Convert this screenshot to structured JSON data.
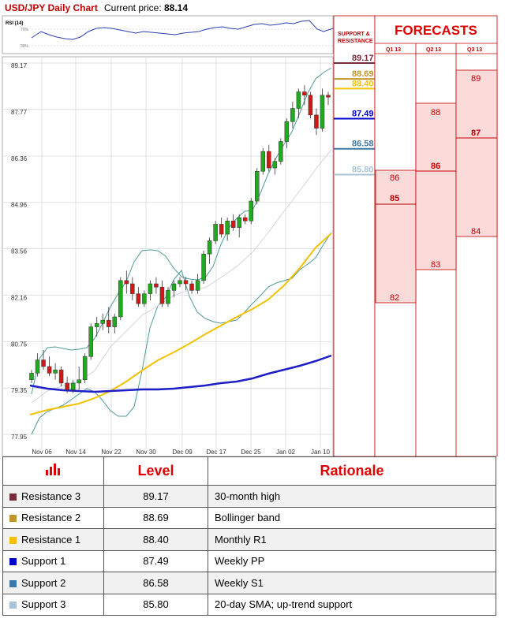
{
  "header": {
    "title": "USD/JPY Daily Chart",
    "price_label": "Current price:",
    "price_value": "88.14"
  },
  "rsi": {
    "label": "RSI (14)",
    "upper": "70%",
    "lower": "30%"
  },
  "forecasts": {
    "title": "FORECASTS",
    "sr_label_1": "SUPPORT &",
    "sr_label_2": "RESISTANCE",
    "columns": [
      {
        "label": "Q1 13",
        "low": "82",
        "mid": "85",
        "high": "86"
      },
      {
        "label": "Q2 13",
        "low": "83",
        "mid": "86",
        "high": "88"
      },
      {
        "label": "Q3 13",
        "low": "84",
        "mid": "87",
        "high": "89"
      }
    ]
  },
  "table": {
    "col_level": "Level",
    "col_rationale": "Rationale",
    "rows": [
      {
        "name": "Resistance 3",
        "level": "89.17",
        "rationale": "30-month high",
        "color": "#7b2c3a"
      },
      {
        "name": "Resistance 2",
        "level": "88.69",
        "rationale": "Bollinger band",
        "color": "#c4952c"
      },
      {
        "name": "Resistance 1",
        "level": "88.40",
        "rationale": "Monthly R1",
        "color": "#f2c200"
      },
      {
        "name": "Support 1",
        "level": "87.49",
        "rationale": "Weekly PP",
        "color": "#0000cc"
      },
      {
        "name": "Support 2",
        "level": "86.58",
        "rationale": "Weekly S1",
        "color": "#3f78a4"
      },
      {
        "name": "Support 3",
        "level": "85.80",
        "rationale": "20-day SMA; up-trend support",
        "color": "#a9c4da"
      }
    ]
  },
  "chart_data": {
    "type": "candlestick",
    "title": "USD/JPY Daily Chart",
    "y_ticks": [
      "89.17",
      "87.77",
      "86.36",
      "84.96",
      "83.56",
      "82.16",
      "80.75",
      "79.35",
      "77.95"
    ],
    "x_ticks": [
      "Nov 06",
      "Nov 14",
      "Nov 22",
      "Nov 30",
      "Dec 09",
      "Dec 17",
      "Dec 25",
      "Jan 02",
      "Jan 10"
    ],
    "ylim": [
      77.95,
      89.17
    ],
    "levels": [
      {
        "name": "Resistance 3",
        "value": 89.17,
        "color": "#7b2c3a"
      },
      {
        "name": "Resistance 2",
        "value": 88.69,
        "color": "#c4952c"
      },
      {
        "name": "Resistance 1",
        "value": 88.4,
        "color": "#f2c200"
      },
      {
        "name": "Support 1",
        "value": 87.49,
        "color": "#0000cc"
      },
      {
        "name": "Support 2",
        "value": 86.58,
        "color": "#3f78a4"
      },
      {
        "name": "Support 3",
        "value": 85.8,
        "color": "#a9c4da"
      }
    ],
    "ohlc": [
      [
        79.6,
        79.9,
        79.5,
        79.8
      ],
      [
        79.8,
        80.4,
        79.7,
        80.2
      ],
      [
        80.2,
        80.5,
        79.9,
        80.0
      ],
      [
        80.0,
        80.3,
        79.7,
        79.8
      ],
      [
        79.8,
        80.1,
        79.6,
        79.9
      ],
      [
        79.9,
        80.0,
        79.4,
        79.5
      ],
      [
        79.5,
        79.7,
        79.2,
        79.3
      ],
      [
        79.3,
        79.6,
        79.2,
        79.5
      ],
      [
        79.5,
        80.0,
        79.3,
        79.6
      ],
      [
        79.6,
        80.4,
        79.5,
        80.3
      ],
      [
        80.3,
        81.3,
        80.2,
        81.2
      ],
      [
        81.2,
        81.5,
        80.9,
        81.3
      ],
      [
        81.3,
        81.6,
        81.1,
        81.4
      ],
      [
        81.4,
        81.8,
        81.0,
        81.2
      ],
      [
        81.2,
        81.6,
        81.0,
        81.5
      ],
      [
        81.5,
        82.7,
        81.4,
        82.6
      ],
      [
        82.6,
        82.9,
        82.2,
        82.5
      ],
      [
        82.5,
        82.7,
        82.0,
        82.2
      ],
      [
        82.2,
        82.4,
        81.8,
        81.9
      ],
      [
        81.9,
        82.3,
        81.8,
        82.2
      ],
      [
        82.2,
        82.6,
        82.0,
        82.5
      ],
      [
        82.5,
        82.7,
        82.2,
        82.4
      ],
      [
        82.4,
        82.6,
        81.8,
        81.9
      ],
      [
        81.9,
        82.4,
        81.8,
        82.3
      ],
      [
        82.3,
        82.6,
        82.1,
        82.5
      ],
      [
        82.5,
        82.7,
        82.4,
        82.6
      ],
      [
        82.6,
        82.7,
        82.3,
        82.5
      ],
      [
        82.5,
        82.6,
        82.2,
        82.3
      ],
      [
        82.3,
        82.8,
        82.2,
        82.6
      ],
      [
        82.6,
        83.5,
        82.5,
        83.4
      ],
      [
        83.4,
        83.9,
        83.1,
        83.8
      ],
      [
        83.8,
        84.4,
        83.7,
        84.3
      ],
      [
        84.3,
        84.5,
        83.9,
        84.0
      ],
      [
        84.0,
        84.5,
        83.8,
        84.4
      ],
      [
        84.4,
        84.6,
        84.1,
        84.2
      ],
      [
        84.2,
        84.6,
        83.9,
        84.5
      ],
      [
        84.5,
        84.6,
        84.3,
        84.4
      ],
      [
        84.4,
        85.1,
        84.3,
        85.0
      ],
      [
        85.0,
        86.0,
        84.9,
        85.9
      ],
      [
        85.9,
        86.6,
        85.8,
        86.5
      ],
      [
        86.5,
        86.7,
        85.9,
        86.0
      ],
      [
        86.0,
        86.3,
        85.8,
        86.2
      ],
      [
        86.2,
        86.9,
        86.1,
        86.8
      ],
      [
        86.8,
        87.5,
        86.6,
        87.4
      ],
      [
        87.4,
        88.0,
        87.2,
        87.8
      ],
      [
        87.8,
        88.4,
        87.5,
        88.3
      ],
      [
        88.3,
        88.5,
        87.9,
        88.2
      ],
      [
        88.2,
        88.3,
        87.5,
        87.6
      ],
      [
        87.6,
        87.8,
        87.0,
        87.2
      ],
      [
        87.2,
        88.4,
        87.1,
        88.2
      ],
      [
        88.2,
        88.3,
        87.9,
        88.14
      ]
    ]
  }
}
